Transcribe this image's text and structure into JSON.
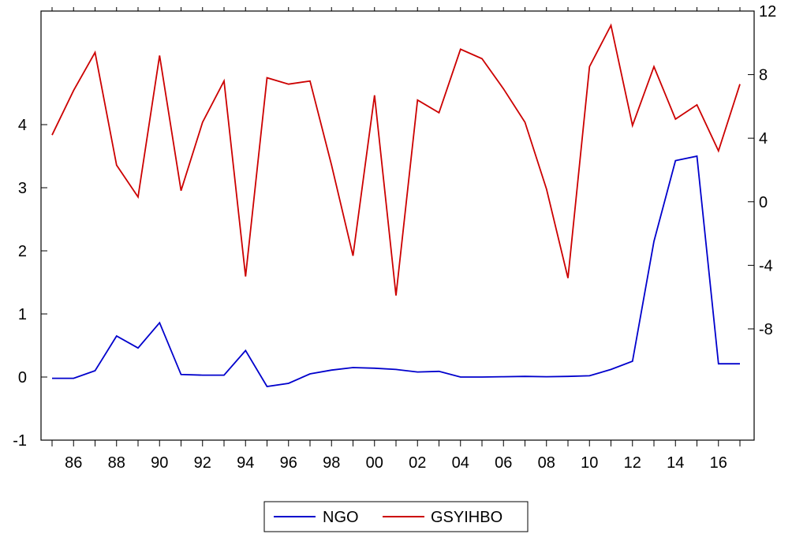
{
  "chart_data": {
    "type": "line",
    "x": [
      "1985",
      "1986",
      "1987",
      "1988",
      "1989",
      "1990",
      "1991",
      "1992",
      "1993",
      "1994",
      "1995",
      "1996",
      "1997",
      "1998",
      "1999",
      "2000",
      "2001",
      "2002",
      "2003",
      "2004",
      "2005",
      "2006",
      "2007",
      "2008",
      "2009",
      "2010",
      "2011",
      "2012",
      "2013",
      "2014",
      "2015",
      "2016",
      "2017"
    ],
    "x_tick_labels": [
      "86",
      "88",
      "90",
      "92",
      "94",
      "96",
      "98",
      "00",
      "02",
      "04",
      "06",
      "08",
      "10",
      "12",
      "14",
      "16"
    ],
    "x_tick_years": [
      1986,
      1988,
      1990,
      1992,
      1994,
      1996,
      1998,
      2000,
      2002,
      2004,
      2006,
      2008,
      2010,
      2012,
      2014,
      2016
    ],
    "y_left": {
      "ylim": [
        -1,
        5.8
      ],
      "ticks": [
        -1,
        0,
        1,
        2,
        3,
        4
      ],
      "tick_labels": [
        "-1",
        "0",
        "1",
        "2",
        "3",
        "4"
      ]
    },
    "y_right": {
      "ylim": [
        -15,
        12
      ],
      "ticks": [
        -8,
        -4,
        0,
        4,
        8,
        12
      ],
      "tick_labels": [
        "-8",
        "-4",
        "0",
        "4",
        "8",
        "12"
      ]
    },
    "series": [
      {
        "name": "NGO",
        "axis": "left",
        "color": "#0000cc",
        "values": [
          -0.02,
          -0.02,
          0.1,
          0.65,
          0.46,
          0.86,
          0.04,
          0.03,
          0.03,
          0.42,
          -0.15,
          -0.1,
          0.05,
          0.11,
          0.15,
          0.14,
          0.12,
          0.08,
          0.09,
          0.0,
          0.0,
          0.005,
          0.01,
          0.005,
          0.01,
          0.02,
          0.12,
          0.25,
          2.15,
          3.43,
          3.5,
          0.21,
          0.21
        ]
      },
      {
        "name": "GSYIHBO",
        "axis": "right",
        "color": "#cc0000",
        "values": [
          4.2,
          7.0,
          9.4,
          2.3,
          0.3,
          9.2,
          0.7,
          5.0,
          7.6,
          -4.7,
          7.8,
          7.4,
          7.6,
          2.3,
          -3.4,
          6.7,
          -5.9,
          6.4,
          5.6,
          9.6,
          9.0,
          7.1,
          5.0,
          0.8,
          -4.8,
          8.5,
          11.1,
          4.8,
          8.5,
          5.2,
          6.1,
          3.2,
          7.4
        ]
      }
    ],
    "legend_position": "bottom-center",
    "grid": false,
    "title": "",
    "xlabel": "",
    "ylabel": ""
  }
}
